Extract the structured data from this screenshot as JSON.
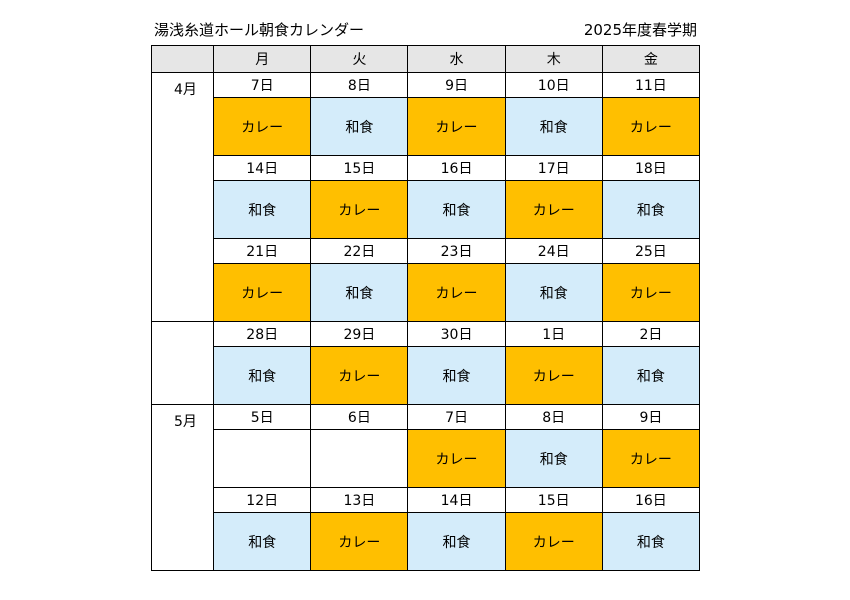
{
  "title": "湯浅糸道ホール朝食カレンダー",
  "term": "2025年度春学期",
  "colors": {
    "curry": "#ffbf00",
    "washoku": "#d4ecfa",
    "header": "#e6e6e6"
  },
  "weekdays": [
    "月",
    "火",
    "水",
    "木",
    "金"
  ],
  "months": [
    "4月",
    "",
    "5月"
  ],
  "weeks": [
    {
      "dates": [
        "7日",
        "8日",
        "9日",
        "10日",
        "11日"
      ],
      "meals": [
        "カレー",
        "和食",
        "カレー",
        "和食",
        "カレー"
      ]
    },
    {
      "dates": [
        "14日",
        "15日",
        "16日",
        "17日",
        "18日"
      ],
      "meals": [
        "和食",
        "カレー",
        "和食",
        "カレー",
        "和食"
      ]
    },
    {
      "dates": [
        "21日",
        "22日",
        "23日",
        "24日",
        "25日"
      ],
      "meals": [
        "カレー",
        "和食",
        "カレー",
        "和食",
        "カレー"
      ]
    },
    {
      "dates": [
        "28日",
        "29日",
        "30日",
        "1日",
        "2日"
      ],
      "meals": [
        "和食",
        "カレー",
        "和食",
        "カレー",
        "和食"
      ]
    },
    {
      "dates": [
        "5日",
        "6日",
        "7日",
        "8日",
        "9日"
      ],
      "meals": [
        "",
        "",
        "カレー",
        "和食",
        "カレー"
      ]
    },
    {
      "dates": [
        "12日",
        "13日",
        "14日",
        "15日",
        "16日"
      ],
      "meals": [
        "和食",
        "カレー",
        "和食",
        "カレー",
        "和食"
      ]
    }
  ]
}
